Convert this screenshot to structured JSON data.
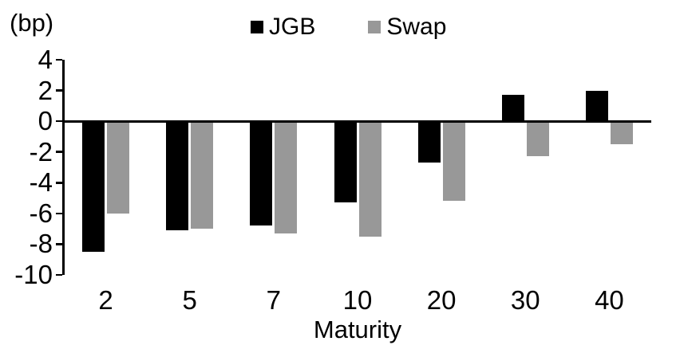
{
  "unit_label": "(bp)",
  "x_axis_title": "Maturity",
  "legend": {
    "items": [
      {
        "label": "JGB",
        "color": "#000000"
      },
      {
        "label": "Swap",
        "color": "#989898"
      }
    ]
  },
  "chart_data": {
    "type": "bar",
    "title": "",
    "categories": [
      "2",
      "5",
      "7",
      "10",
      "20",
      "30",
      "40"
    ],
    "series": [
      {
        "name": "JGB",
        "color": "#000000",
        "values": [
          -8.5,
          -7.1,
          -6.8,
          -5.3,
          -2.7,
          1.7,
          2.0
        ]
      },
      {
        "name": "Swap",
        "color": "#989898",
        "values": [
          -6.0,
          -7.0,
          -7.3,
          -7.5,
          -5.2,
          -2.3,
          -1.5
        ]
      }
    ],
    "xlabel": "Maturity",
    "ylabel": "(bp)",
    "ylim": [
      -10,
      4
    ],
    "yticks": [
      4,
      2,
      0,
      -2,
      -4,
      -6,
      -8,
      -10
    ],
    "grid": false,
    "legend_position": "top-center"
  }
}
